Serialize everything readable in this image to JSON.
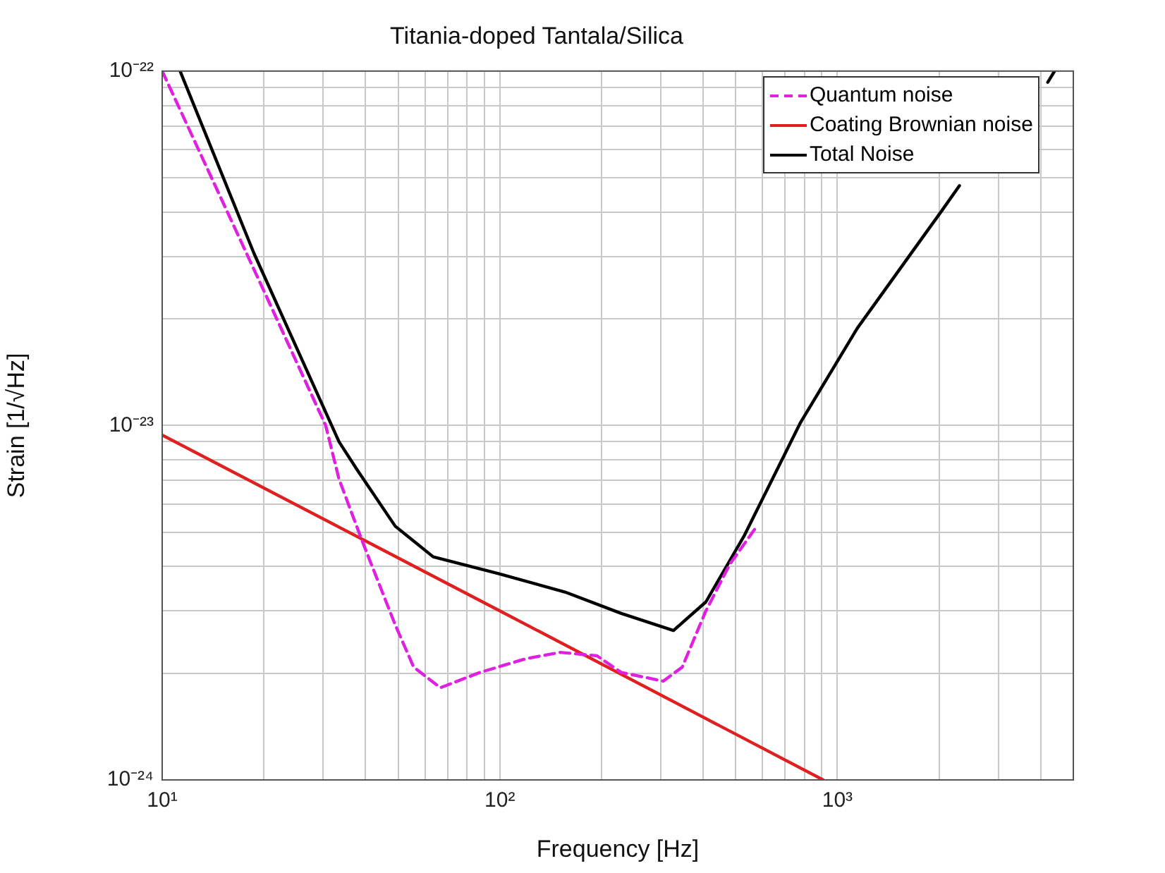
{
  "chart_data": {
    "type": "line",
    "title": "Titania-doped Tantala/Silica",
    "xlabel": "Frequency [Hz]",
    "ylabel": "Strain [1/√Hz]",
    "log": "xy",
    "grid": true,
    "legend": "top right",
    "xlim": [
      10,
      5000
    ],
    "ylim": [
      1e-24,
      1e-22
    ],
    "xticks": [
      {
        "value": 10,
        "label": "10¹"
      },
      {
        "value": 20,
        "label": null
      },
      {
        "value": 30,
        "label": null
      },
      {
        "value": 40,
        "label": null
      },
      {
        "value": 50,
        "label": null
      },
      {
        "value": 60,
        "label": null
      },
      {
        "value": 70,
        "label": null
      },
      {
        "value": 80,
        "label": null
      },
      {
        "value": 90,
        "label": null
      },
      {
        "value": 100,
        "label": "10²"
      },
      {
        "value": 200,
        "label": null
      },
      {
        "value": 300,
        "label": null
      },
      {
        "value": 400,
        "label": null
      },
      {
        "value": 500,
        "label": null
      },
      {
        "value": 600,
        "label": null
      },
      {
        "value": 700,
        "label": null
      },
      {
        "value": 800,
        "label": null
      },
      {
        "value": 900,
        "label": null
      },
      {
        "value": 1000,
        "label": "10³"
      },
      {
        "value": 2000,
        "label": null
      },
      {
        "value": 3000,
        "label": null
      },
      {
        "value": 4000,
        "label": null
      }
    ],
    "yticks": [
      {
        "value": 1e-24,
        "label": "10⁻²⁴"
      },
      {
        "value": 2e-24,
        "label": null
      },
      {
        "value": 3e-24,
        "label": null
      },
      {
        "value": 4e-24,
        "label": null
      },
      {
        "value": 5e-24,
        "label": null
      },
      {
        "value": 6e-24,
        "label": null
      },
      {
        "value": 7e-24,
        "label": null
      },
      {
        "value": 8e-24,
        "label": null
      },
      {
        "value": 9e-24,
        "label": null
      },
      {
        "value": 1e-23,
        "label": "10⁻²³"
      },
      {
        "value": 2e-23,
        "label": null
      },
      {
        "value": 3e-23,
        "label": null
      },
      {
        "value": 4e-23,
        "label": null
      },
      {
        "value": 5e-23,
        "label": null
      },
      {
        "value": 6e-23,
        "label": null
      },
      {
        "value": 7e-23,
        "label": null
      },
      {
        "value": 8e-23,
        "label": null
      },
      {
        "value": 9e-23,
        "label": null
      },
      {
        "value": 1e-22,
        "label": "10⁻²²"
      }
    ],
    "series": [
      {
        "name": "Quantum noise",
        "color": "#e020e0",
        "line_style": "dashed",
        "x": [
          10,
          20,
          30.5,
          33.4,
          39.3,
          49,
          55.6,
          66.7,
          87.3,
          120,
          151,
          194,
          229,
          305,
          347,
          408,
          481,
          571
        ],
        "values": [
          1e-22,
          2.4e-23,
          1e-23,
          7.06e-24,
          4.67e-24,
          2.74e-24,
          2.08e-24,
          1.82e-24,
          2.01e-24,
          2.2e-24,
          2.29e-24,
          2.24e-24,
          2.01e-24,
          1.9e-24,
          2.08e-24,
          3e-24,
          4.07e-24,
          5.12e-24
        ]
      },
      {
        "name": "Coating Brownian noise",
        "color": "#e02020",
        "line_style": "solid",
        "x": [
          10,
          100,
          908
        ],
        "values": [
          9.4e-24,
          3e-24,
          1e-24
        ]
      },
      {
        "name": "Total Noise",
        "color": "#000000",
        "line_style": "solid",
        "x": [
          11.3,
          18.7,
          33.4,
          37.8,
          49,
          63.5,
          99,
          156,
          229,
          327,
          408,
          530,
          778,
          1145,
          2040,
          2300,
          3000,
          4200,
          4400
        ],
        "values": [
          1e-22,
          3.06e-23,
          9e-24,
          7.5e-24,
          5.2e-24,
          4.26e-24,
          3.82e-24,
          3.39e-24,
          2.95e-24,
          2.64e-24,
          3.18e-24,
          4.89e-24,
          1.02e-23,
          1.88e-23,
          4.04e-23,
          4.75e-23,
          null,
          9.3e-23,
          1e-22
        ]
      }
    ]
  }
}
